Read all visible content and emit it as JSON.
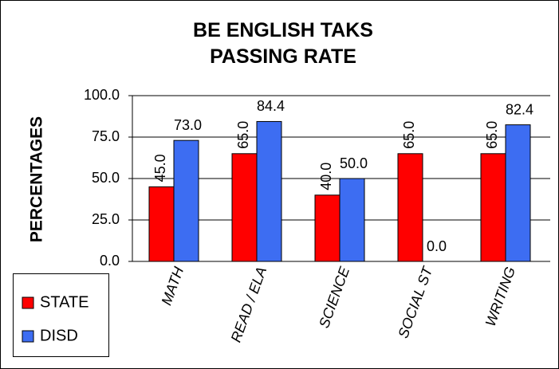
{
  "chart_data": {
    "type": "bar",
    "title": "BE ENGLISH TAKS PASSING RATE",
    "y_label": "PERCENTAGES",
    "categories": [
      "MATH",
      "READ / ELA",
      "SCIENCE",
      "SOCIAL ST",
      "WRITING"
    ],
    "series": [
      {
        "name": "STATE",
        "color": "#ff0000",
        "values": [
          45,
          65,
          40,
          65,
          65
        ],
        "value_labels": [
          "45.0",
          "65.0",
          "40.0",
          "65.0",
          "65.0"
        ]
      },
      {
        "name": "DISD",
        "color": "#3d6df2",
        "values": [
          73,
          84.4,
          50,
          0,
          82.4
        ],
        "value_labels": [
          "73.0",
          "84.4",
          "50.0",
          "0.0",
          "82.4"
        ]
      }
    ],
    "ylim": [
      0,
      100
    ],
    "yticks": [
      {
        "value": 0,
        "label": "0.0"
      },
      {
        "value": 25,
        "label": "25.0"
      },
      {
        "value": 50,
        "label": "50.0"
      },
      {
        "value": 75,
        "label": "75.0"
      },
      {
        "value": 100,
        "label": "100.0"
      }
    ],
    "grid": true,
    "legend": "bottom-left"
  }
}
